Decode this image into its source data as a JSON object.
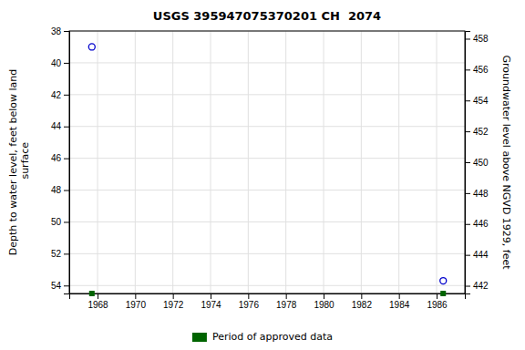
{
  "chart_data": {
    "type": "scatter",
    "title": "USGS 395947075370201 CH  2074",
    "x": [
      1967.7,
      1986.35
    ],
    "series": [
      {
        "color": "#0000cc",
        "marker": "open-circle",
        "values": [
          39.0,
          53.7
        ]
      }
    ],
    "approved_data": {
      "name": "Period of approved data",
      "color": "#006400",
      "marker": "square",
      "x": [
        1967.7,
        1986.35
      ]
    },
    "xlim": [
      1966.5,
      1987.5
    ],
    "xticks": [
      1968,
      1970,
      1972,
      1974,
      1976,
      1978,
      1980,
      1982,
      1984,
      1986
    ],
    "ylabel": "Depth to water level, feet below land\n surface",
    "ylim": [
      54.5,
      38
    ],
    "yticks": [
      38,
      40,
      42,
      44,
      46,
      48,
      50,
      52,
      54
    ],
    "y2label": "Groundwater level above NGVD 1929, feet",
    "y2lim": [
      441.5,
      458.5
    ],
    "y2ticks": [
      442,
      444,
      446,
      448,
      450,
      452,
      454,
      456,
      458
    ],
    "grid": true,
    "legend": "bottom"
  }
}
